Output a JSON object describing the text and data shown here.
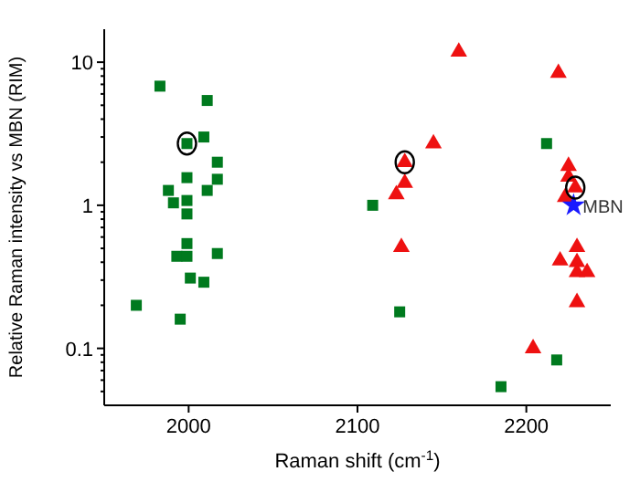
{
  "chart_data": {
    "type": "scatter",
    "xlabel": "Raman shift (cm$^{-1}$)",
    "ylabel": "Relative Raman intensity vs MBN (RIM)",
    "log": "y",
    "xlim": [
      1950,
      2250
    ],
    "ylim": [
      0.04,
      17
    ],
    "xticks": [
      2000,
      2100,
      2200
    ],
    "yticks": [
      {
        "value": 0.05,
        "label": null
      },
      {
        "value": 0.06,
        "label": null
      },
      {
        "value": 0.07,
        "label": null
      },
      {
        "value": 0.08,
        "label": null
      },
      {
        "value": 0.09,
        "label": null
      },
      0.1,
      {
        "value": 0.2,
        "label": null
      },
      {
        "value": 0.3,
        "label": null
      },
      {
        "value": 0.4,
        "label": null
      },
      {
        "value": 0.5,
        "label": null
      },
      {
        "value": 0.6,
        "label": null
      },
      {
        "value": 0.7,
        "label": null
      },
      {
        "value": 0.8,
        "label": null
      },
      {
        "value": 0.9,
        "label": null
      },
      1,
      {
        "value": 2,
        "label": null
      },
      {
        "value": 3,
        "label": null
      },
      {
        "value": 4,
        "label": null
      },
      {
        "value": 5,
        "label": null
      },
      {
        "value": 6,
        "label": null
      },
      {
        "value": 7,
        "label": null
      },
      {
        "value": 8,
        "label": null
      },
      {
        "value": 9,
        "label": null
      },
      10
    ],
    "grid": false,
    "series": [
      {
        "color": "#007a1e",
        "marker": "square",
        "x": [
          1983,
          2011,
          2009,
          1999,
          2017,
          1999,
          2017,
          1988,
          2011,
          1991,
          1999,
          1999,
          1999,
          1993,
          1999,
          2017,
          2001,
          2009,
          1969,
          1995,
          2212,
          2109,
          2125,
          2218,
          2185
        ],
        "values": [
          6.8,
          5.4,
          3.0,
          2.7,
          2.0,
          1.56,
          1.52,
          1.27,
          1.27,
          1.04,
          1.08,
          0.87,
          0.54,
          0.44,
          0.44,
          0.46,
          0.31,
          0.29,
          0.2,
          0.16,
          2.7,
          1.0,
          0.18,
          0.083,
          0.054
        ]
      },
      {
        "color": "#ee1111",
        "marker": "triangle",
        "x": [
          2160,
          2219,
          2145,
          2128,
          2128,
          2123,
          2126,
          2225,
          2225,
          2229,
          2223,
          2230,
          2220,
          2230,
          2230,
          2236,
          2230,
          2204
        ],
        "values": [
          11.8,
          8.4,
          2.7,
          2.0,
          1.43,
          1.19,
          0.51,
          1.88,
          1.58,
          1.33,
          1.14,
          0.51,
          0.41,
          0.4,
          0.34,
          0.34,
          0.21,
          0.1
        ]
      },
      {
        "name": "MBN",
        "color": "#1a1aff",
        "marker": "star",
        "x": [
          2228
        ],
        "values": [
          1.0
        ]
      },
      {
        "color": "#000000",
        "marker": "circle",
        "x": [
          1999,
          2128,
          2229
        ],
        "values": [
          2.7,
          2.0,
          1.33
        ]
      }
    ]
  }
}
